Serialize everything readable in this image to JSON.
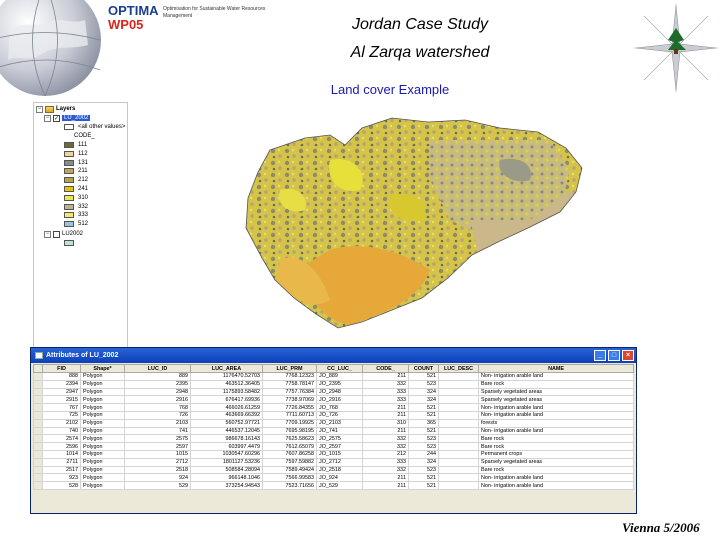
{
  "header": {
    "brand_name": "OPTIMA",
    "brand_wp": "WP05",
    "brand_sub": "Optimisation for Sustainable Water Resources Management",
    "title_line1": "Jordan Case Study",
    "title_line2": "Al Zarqa watershed",
    "subtitle": "Land cover Example"
  },
  "toc": {
    "root_label": "Layers",
    "layer1": "LU_2002",
    "other_values": "<all other values>",
    "field_label": "CODE_",
    "classes": [
      {
        "code": "111",
        "color": "#6b6b3a"
      },
      {
        "code": "112",
        "color": "#f2d0a0"
      },
      {
        "code": "131",
        "color": "#8a8a8a"
      },
      {
        "code": "211",
        "color": "#c2a45a"
      },
      {
        "code": "212",
        "color": "#b6a24a"
      },
      {
        "code": "241",
        "color": "#e4c400"
      },
      {
        "code": "310",
        "color": "#e8e850"
      },
      {
        "code": "332",
        "color": "#bfb190"
      },
      {
        "code": "333",
        "color": "#f0e870"
      },
      {
        "code": "512",
        "color": "#9ac4d8"
      }
    ],
    "layer2": "LU2002",
    "layer2_color": "#bde3d0"
  },
  "attributes": {
    "title": "Attributes of LU_2002",
    "columns": [
      "FID",
      "Shape*",
      "LUC_ID",
      "LUC_AREA",
      "LUC_PRM",
      "CC_LUC_",
      "CODE_",
      "COUNT",
      "LUC_DESC",
      "NAME"
    ],
    "rows": [
      [
        "888",
        "Polygon",
        "889",
        "1176470.52703",
        "7768.12323",
        "JO_889",
        "211",
        "521",
        "",
        "Non- irrigation arable land"
      ],
      [
        "2394",
        "Polygon",
        "2395",
        "463512.36405",
        "7758.78147",
        "JO_2395",
        "332",
        "523",
        "",
        "Bare rock"
      ],
      [
        "2947",
        "Polygon",
        "2948",
        "1175893.58482",
        "7757.76384",
        "JO_2948",
        "333",
        "324",
        "",
        "Sparsely vegetated areas"
      ],
      [
        "2915",
        "Polygon",
        "2916",
        "676417.69936",
        "7738.97069",
        "JO_2916",
        "333",
        "324",
        "",
        "Sparsely vegetated areas"
      ],
      [
        "767",
        "Polygon",
        "768",
        "466026.61259",
        "7726.84355",
        "JO_768",
        "211",
        "521",
        "",
        "Non- irrigation arable land"
      ],
      [
        "725",
        "Polygon",
        "726",
        "463669.66392",
        "7711.60713",
        "JO_726",
        "211",
        "521",
        "",
        "Non- irrigation arable land"
      ],
      [
        "2102",
        "Polygon",
        "2103",
        "560752.97721",
        "7709.19925",
        "JO_2103",
        "310",
        "365",
        "",
        "forests"
      ],
      [
        "740",
        "Polygon",
        "741",
        "446537.12045",
        "7695.98195",
        "JO_741",
        "211",
        "521",
        "",
        "Non- irrigation arable land"
      ],
      [
        "2574",
        "Polygon",
        "2575",
        "986678.16143",
        "7625.58623",
        "JO_2575",
        "332",
        "523",
        "",
        "Bare rock"
      ],
      [
        "2596",
        "Polygon",
        "2597",
        "603997.4479",
        "7612.65079",
        "JO_2597",
        "332",
        "523",
        "",
        "Bare rock"
      ],
      [
        "1014",
        "Polygon",
        "1015",
        "1030547.60296",
        "7607.86258",
        "JO_1015",
        "212",
        "244",
        "",
        "Permanent crops"
      ],
      [
        "2711",
        "Polygon",
        "2712",
        "1801127.53236",
        "7597.59882",
        "JO_2712",
        "333",
        "324",
        "",
        "Sparsely vegetated areas"
      ],
      [
        "2517",
        "Polygon",
        "2518",
        "508584.28094",
        "7589.49424",
        "JO_2518",
        "332",
        "523",
        "",
        "Bare rock"
      ],
      [
        "923",
        "Polygon",
        "924",
        "966148.1046",
        "7566.99583",
        "JO_924",
        "211",
        "521",
        "",
        "Non- irrigation arable land"
      ],
      [
        "528",
        "Polygon",
        "529",
        "373254.94543",
        "7523.71656",
        "JO_529",
        "211",
        "521",
        "",
        "Non- irrigation arable land"
      ]
    ]
  },
  "footer": "Vienna 5/2006"
}
